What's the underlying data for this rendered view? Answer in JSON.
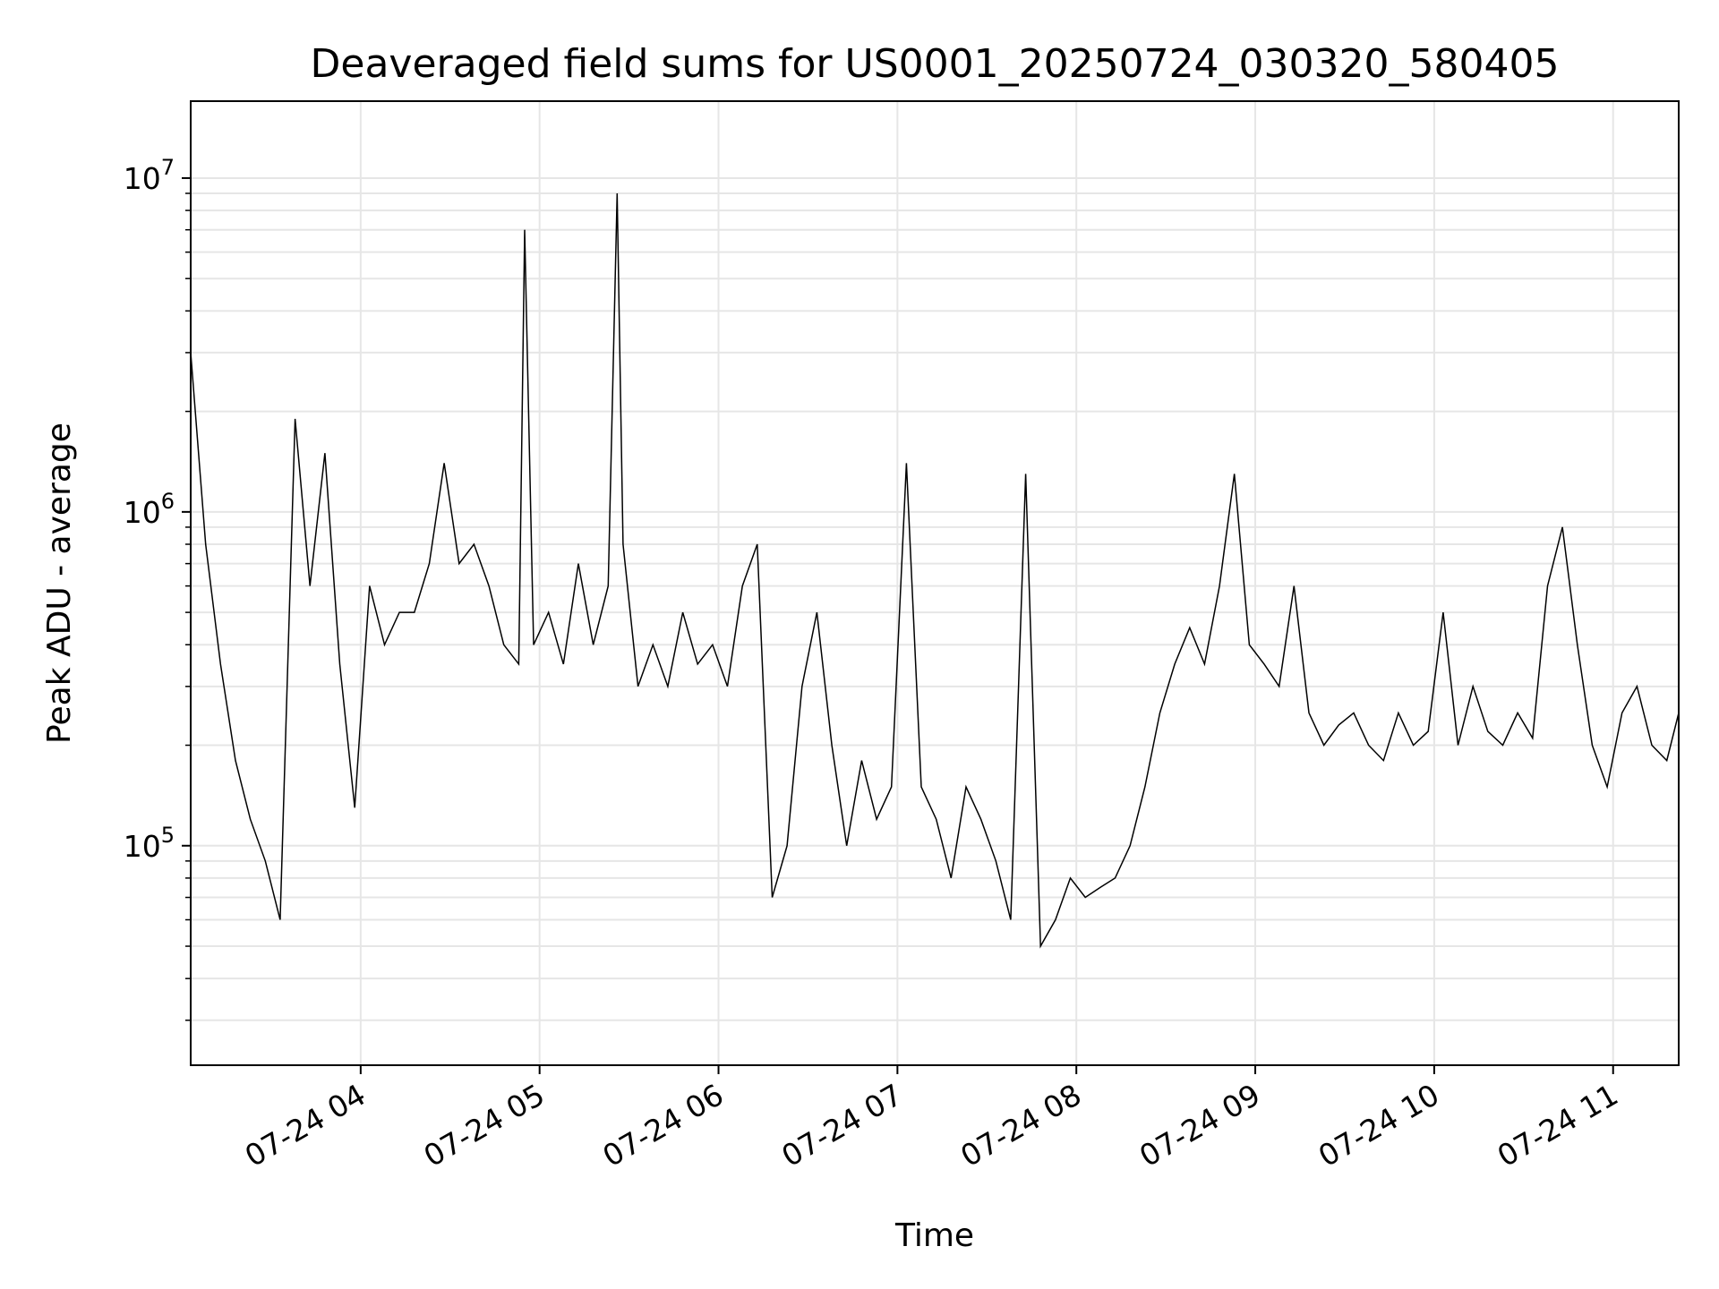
{
  "chart_data": {
    "type": "line",
    "title": "Deaveraged field sums for US0001_20250724_030320_580405",
    "xlabel": "Time",
    "ylabel": "Peak ADU - average",
    "yscale": "log",
    "ylim": [
      22000,
      17000000
    ],
    "xlim": [
      "2025-07-24 03:03",
      "2025-07-24 11:22"
    ],
    "x_ticks": [
      {
        "time": "2025-07-24 04:00",
        "label": "07-24 04"
      },
      {
        "time": "2025-07-24 05:00",
        "label": "07-24 05"
      },
      {
        "time": "2025-07-24 06:00",
        "label": "07-24 06"
      },
      {
        "time": "2025-07-24 07:00",
        "label": "07-24 07"
      },
      {
        "time": "2025-07-24 08:00",
        "label": "07-24 08"
      },
      {
        "time": "2025-07-24 09:00",
        "label": "07-24 09"
      },
      {
        "time": "2025-07-24 10:00",
        "label": "07-24 10"
      },
      {
        "time": "2025-07-24 11:00",
        "label": "07-24 11"
      }
    ],
    "y_ticks": [
      {
        "value": 100000,
        "base": "10",
        "exp": "5"
      },
      {
        "value": 1000000,
        "base": "10",
        "exp": "6"
      },
      {
        "value": 10000000,
        "base": "10",
        "exp": "7"
      }
    ],
    "grid": true,
    "line_color": "#000000",
    "series": [
      {
        "x": [
          "2025-07-24 03:03",
          "2025-07-24 03:08",
          "2025-07-24 03:13",
          "2025-07-24 03:18",
          "2025-07-24 03:23",
          "2025-07-24 03:28",
          "2025-07-24 03:33",
          "2025-07-24 03:38",
          "2025-07-24 03:43",
          "2025-07-24 03:48",
          "2025-07-24 03:53",
          "2025-07-24 03:58",
          "2025-07-24 04:03",
          "2025-07-24 04:08",
          "2025-07-24 04:13",
          "2025-07-24 04:18",
          "2025-07-24 04:23",
          "2025-07-24 04:28",
          "2025-07-24 04:33",
          "2025-07-24 04:38",
          "2025-07-24 04:43",
          "2025-07-24 04:48",
          "2025-07-24 04:53",
          "2025-07-24 04:55",
          "2025-07-24 04:58",
          "2025-07-24 05:03",
          "2025-07-24 05:08",
          "2025-07-24 05:13",
          "2025-07-24 05:18",
          "2025-07-24 05:23",
          "2025-07-24 05:26",
          "2025-07-24 05:28",
          "2025-07-24 05:33",
          "2025-07-24 05:38",
          "2025-07-24 05:43",
          "2025-07-24 05:48",
          "2025-07-24 05:53",
          "2025-07-24 05:58",
          "2025-07-24 06:03",
          "2025-07-24 06:08",
          "2025-07-24 06:13",
          "2025-07-24 06:18",
          "2025-07-24 06:23",
          "2025-07-24 06:28",
          "2025-07-24 06:33",
          "2025-07-24 06:38",
          "2025-07-24 06:43",
          "2025-07-24 06:48",
          "2025-07-24 06:53",
          "2025-07-24 06:58",
          "2025-07-24 07:03",
          "2025-07-24 07:08",
          "2025-07-24 07:13",
          "2025-07-24 07:18",
          "2025-07-24 07:23",
          "2025-07-24 07:28",
          "2025-07-24 07:33",
          "2025-07-24 07:38",
          "2025-07-24 07:43",
          "2025-07-24 07:48",
          "2025-07-24 07:53",
          "2025-07-24 07:58",
          "2025-07-24 08:03",
          "2025-07-24 08:08",
          "2025-07-24 08:13",
          "2025-07-24 08:18",
          "2025-07-24 08:23",
          "2025-07-24 08:28",
          "2025-07-24 08:33",
          "2025-07-24 08:38",
          "2025-07-24 08:43",
          "2025-07-24 08:48",
          "2025-07-24 08:53",
          "2025-07-24 08:58",
          "2025-07-24 09:03",
          "2025-07-24 09:08",
          "2025-07-24 09:13",
          "2025-07-24 09:18",
          "2025-07-24 09:23",
          "2025-07-24 09:28",
          "2025-07-24 09:33",
          "2025-07-24 09:38",
          "2025-07-24 09:43",
          "2025-07-24 09:48",
          "2025-07-24 09:53",
          "2025-07-24 09:58",
          "2025-07-24 10:03",
          "2025-07-24 10:08",
          "2025-07-24 10:13",
          "2025-07-24 10:18",
          "2025-07-24 10:23",
          "2025-07-24 10:28",
          "2025-07-24 10:33",
          "2025-07-24 10:38",
          "2025-07-24 10:43",
          "2025-07-24 10:48",
          "2025-07-24 10:53",
          "2025-07-24 10:58",
          "2025-07-24 11:03",
          "2025-07-24 11:08",
          "2025-07-24 11:13",
          "2025-07-24 11:18",
          "2025-07-24 11:22"
        ],
        "y": [
          3000000,
          800000,
          350000,
          180000,
          120000,
          90000,
          60000,
          1900000,
          600000,
          1500000,
          350000,
          130000,
          600000,
          400000,
          500000,
          500000,
          700000,
          1400000,
          700000,
          800000,
          600000,
          400000,
          350000,
          7000000,
          400000,
          500000,
          350000,
          700000,
          400000,
          600000,
          9000000,
          800000,
          300000,
          400000,
          300000,
          500000,
          350000,
          400000,
          300000,
          600000,
          800000,
          70000,
          100000,
          300000,
          500000,
          200000,
          100000,
          180000,
          120000,
          150000,
          1400000,
          150000,
          120000,
          80000,
          150000,
          120000,
          90000,
          60000,
          1300000,
          50000,
          60000,
          80000,
          70000,
          75000,
          80000,
          100000,
          150000,
          250000,
          350000,
          450000,
          350000,
          600000,
          1300000,
          400000,
          350000,
          300000,
          600000,
          250000,
          200000,
          230000,
          250000,
          200000,
          180000,
          250000,
          200000,
          220000,
          500000,
          200000,
          300000,
          220000,
          200000,
          250000,
          210000,
          600000,
          900000,
          400000,
          200000,
          150000,
          250000,
          300000,
          200000,
          180000,
          250000
        ]
      }
    ]
  }
}
